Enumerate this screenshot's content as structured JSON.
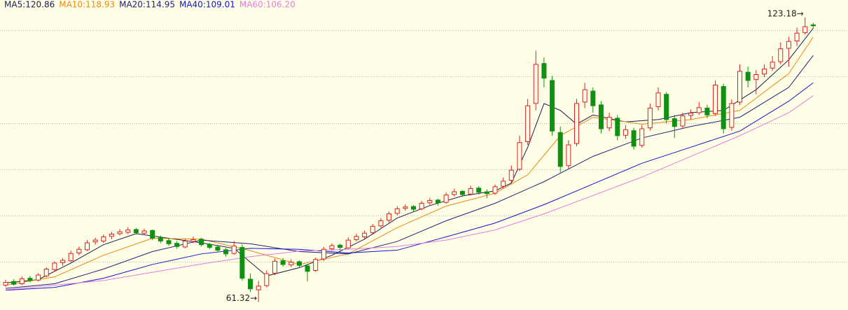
{
  "chart_data": {
    "type": "candlestick",
    "ylim": [
      59.6,
      127
    ],
    "up_color": "#e02020",
    "down_color": "#109010",
    "ohlc": [
      [
        65.0,
        66.2,
        64.6,
        65.6
      ],
      [
        65.8,
        66.3,
        64.9,
        65.2
      ],
      [
        65.3,
        66.9,
        65.0,
        66.4
      ],
      [
        66.5,
        67.0,
        65.6,
        66.0
      ],
      [
        66.1,
        67.6,
        65.8,
        67.2
      ],
      [
        67.0,
        68.9,
        66.7,
        68.5
      ],
      [
        68.4,
        70.2,
        68.0,
        69.8
      ],
      [
        69.9,
        70.9,
        69.2,
        70.4
      ],
      [
        70.3,
        72.5,
        70.0,
        71.9
      ],
      [
        72.0,
        73.4,
        71.5,
        72.8
      ],
      [
        72.7,
        74.8,
        72.4,
        74.2
      ],
      [
        74.4,
        75.3,
        73.8,
        74.8
      ],
      [
        74.6,
        76.0,
        74.2,
        75.5
      ],
      [
        75.6,
        76.6,
        75.0,
        76.1
      ],
      [
        76.2,
        77.2,
        75.8,
        76.6
      ],
      [
        76.5,
        77.6,
        76.1,
        77.0
      ],
      [
        77.1,
        77.4,
        76.0,
        76.4
      ],
      [
        76.3,
        77.3,
        75.9,
        76.8
      ],
      [
        76.9,
        77.1,
        74.8,
        75.2
      ],
      [
        75.3,
        75.8,
        74.1,
        74.6
      ],
      [
        74.7,
        75.2,
        73.6,
        74.0
      ],
      [
        74.1,
        74.6,
        72.9,
        73.4
      ],
      [
        73.3,
        75.1,
        73.0,
        74.6
      ],
      [
        74.5,
        75.6,
        74.1,
        74.9
      ],
      [
        75.0,
        75.3,
        73.4,
        73.8
      ],
      [
        73.9,
        74.2,
        72.8,
        73.2
      ],
      [
        73.3,
        73.8,
        72.1,
        72.6
      ],
      [
        72.7,
        73.1,
        71.2,
        71.8
      ],
      [
        71.9,
        74.6,
        71.6,
        73.5
      ],
      [
        73.2,
        73.9,
        66.0,
        66.5
      ],
      [
        66.3,
        67.5,
        63.5,
        64.2
      ],
      [
        64.0,
        65.9,
        61.32,
        64.8
      ],
      [
        64.9,
        68.2,
        64.5,
        67.5
      ],
      [
        67.6,
        70.8,
        67.2,
        70.2
      ],
      [
        70.3,
        70.9,
        69.0,
        69.5
      ],
      [
        69.4,
        70.6,
        68.9,
        70.0
      ],
      [
        70.1,
        70.4,
        68.7,
        69.3
      ],
      [
        69.2,
        69.6,
        65.8,
        68.0
      ],
      [
        68.2,
        71.0,
        67.9,
        70.6
      ],
      [
        70.7,
        73.3,
        70.3,
        72.8
      ],
      [
        72.9,
        74.1,
        72.5,
        73.6
      ],
      [
        73.7,
        74.0,
        72.6,
        73.2
      ],
      [
        73.1,
        75.4,
        72.9,
        74.8
      ],
      [
        74.9,
        76.2,
        74.5,
        75.6
      ],
      [
        75.5,
        76.9,
        75.1,
        76.3
      ],
      [
        76.4,
        78.3,
        76.0,
        77.8
      ],
      [
        77.9,
        79.6,
        77.5,
        79.0
      ],
      [
        79.1,
        81.0,
        78.6,
        80.5
      ],
      [
        80.6,
        82.2,
        80.2,
        81.6
      ],
      [
        81.7,
        82.6,
        81.2,
        82.0
      ],
      [
        82.1,
        82.4,
        81.0,
        81.5
      ],
      [
        81.6,
        83.3,
        81.3,
        82.8
      ],
      [
        82.9,
        84.0,
        82.5,
        83.4
      ],
      [
        83.5,
        83.8,
        82.3,
        82.9
      ],
      [
        83.0,
        85.2,
        82.7,
        84.6
      ],
      [
        84.7,
        86.0,
        84.3,
        85.3
      ],
      [
        85.4,
        85.7,
        84.2,
        84.7
      ],
      [
        84.8,
        86.6,
        84.5,
        86.0
      ],
      [
        86.1,
        86.5,
        84.7,
        85.2
      ],
      [
        85.3,
        85.8,
        83.9,
        84.9
      ],
      [
        85.0,
        86.9,
        84.6,
        86.4
      ],
      [
        86.5,
        88.4,
        86.1,
        87.6
      ],
      [
        87.8,
        91.0,
        87.3,
        90.0
      ],
      [
        90.2,
        97.5,
        89.8,
        96.0
      ],
      [
        96.2,
        105.5,
        95.5,
        104.0
      ],
      [
        104.5,
        116.0,
        103.0,
        113.0
      ],
      [
        113.2,
        114.5,
        108.0,
        110.0
      ],
      [
        109.5,
        110.5,
        97.5,
        98.5
      ],
      [
        98.2,
        99.5,
        89.5,
        90.8
      ],
      [
        91.0,
        96.5,
        90.2,
        95.5
      ],
      [
        95.8,
        105.5,
        95.2,
        104.5
      ],
      [
        104.8,
        109.0,
        103.5,
        107.5
      ],
      [
        107.2,
        108.0,
        102.5,
        104.0
      ],
      [
        104.2,
        105.0,
        98.0,
        99.0
      ],
      [
        99.2,
        102.5,
        98.5,
        101.5
      ],
      [
        101.3,
        102.0,
        96.5,
        97.5
      ],
      [
        97.6,
        99.8,
        96.8,
        98.8
      ],
      [
        98.6,
        99.2,
        94.5,
        95.2
      ],
      [
        95.4,
        99.8,
        94.9,
        99.0
      ],
      [
        99.2,
        104.5,
        98.6,
        103.5
      ],
      [
        103.8,
        108.0,
        103.0,
        106.8
      ],
      [
        106.5,
        107.0,
        100.2,
        101.0
      ],
      [
        101.2,
        102.0,
        97.0,
        99.5
      ],
      [
        99.6,
        102.5,
        99.0,
        101.8
      ],
      [
        101.9,
        103.2,
        101.0,
        102.4
      ],
      [
        102.5,
        104.8,
        102.0,
        103.6
      ],
      [
        103.5,
        104.2,
        101.3,
        102.0
      ],
      [
        102.3,
        109.5,
        101.8,
        108.5
      ],
      [
        108.2,
        108.8,
        98.0,
        99.0
      ],
      [
        99.3,
        105.4,
        98.6,
        104.5
      ],
      [
        104.8,
        113.0,
        104.2,
        111.5
      ],
      [
        111.3,
        112.5,
        108.0,
        109.5
      ],
      [
        109.7,
        111.8,
        106.5,
        110.8
      ],
      [
        110.9,
        113.0,
        110.2,
        112.0
      ],
      [
        112.2,
        114.8,
        111.6,
        113.5
      ],
      [
        113.6,
        117.8,
        113.0,
        116.4
      ],
      [
        116.5,
        119.0,
        112.5,
        118.0
      ],
      [
        118.1,
        121.0,
        117.0,
        119.8
      ],
      [
        119.9,
        123.18,
        119.5,
        121.2
      ],
      [
        121.6,
        122.0,
        120.8,
        121.4
      ]
    ],
    "series": [
      {
        "name": "MA5:120.86",
        "color": "#1c1c50",
        "x": [
          0,
          4,
          8,
          12,
          16,
          20,
          24,
          28,
          30,
          32,
          36,
          40,
          44,
          48,
          52,
          56,
          60,
          62,
          64,
          66,
          68,
          70,
          72,
          76,
          80,
          84,
          88,
          92,
          96,
          99
        ],
        "values": [
          65.5,
          66.2,
          69.8,
          73.8,
          76.2,
          75.2,
          74.2,
          73.0,
          70.0,
          67.0,
          68.8,
          71.5,
          75.0,
          79.6,
          82.3,
          84.4,
          85.5,
          87.2,
          95.0,
          104.5,
          103.0,
          100.0,
          102.0,
          100.5,
          101.0,
          102.5,
          103.0,
          107.5,
          114.0,
          120.86
        ]
      },
      {
        "name": "MA10:118.93",
        "color": "#e88a10",
        "x": [
          0,
          6,
          12,
          18,
          24,
          30,
          36,
          42,
          48,
          54,
          60,
          64,
          68,
          72,
          78,
          84,
          90,
          96,
          99
        ],
        "values": [
          65.0,
          66.8,
          71.5,
          75.2,
          75.0,
          72.5,
          69.5,
          71.8,
          77.5,
          82.2,
          85.0,
          89.0,
          97.5,
          101.5,
          100.0,
          101.0,
          103.0,
          111.0,
          118.93
        ]
      },
      {
        "name": "MA20:114.95",
        "color": "#20207a",
        "x": [
          0,
          6,
          12,
          18,
          24,
          30,
          36,
          42,
          48,
          54,
          60,
          66,
          72,
          78,
          84,
          90,
          96,
          99
        ],
        "values": [
          64.3,
          65.3,
          68.5,
          72.3,
          74.8,
          74.0,
          72.3,
          71.8,
          74.5,
          79.0,
          82.8,
          87.5,
          93.0,
          97.0,
          99.5,
          101.5,
          108.0,
          114.95
        ]
      },
      {
        "name": "MA40:109.01",
        "color": "#1414d0",
        "x": [
          0,
          6,
          12,
          18,
          24,
          30,
          36,
          42,
          48,
          54,
          60,
          66,
          72,
          78,
          84,
          90,
          96,
          99
        ],
        "values": [
          63.9,
          64.5,
          66.5,
          69.5,
          71.8,
          73.0,
          72.8,
          72.0,
          72.6,
          75.5,
          78.5,
          82.5,
          87.0,
          91.5,
          95.0,
          98.5,
          105.0,
          109.01
        ]
      },
      {
        "name": "MA60:106.20",
        "color": "#e47ae4",
        "x": [
          0,
          12,
          18,
          24,
          30,
          36,
          42,
          48,
          54,
          60,
          66,
          72,
          78,
          84,
          90,
          96,
          99
        ],
        "values": [
          64.0,
          66.0,
          67.8,
          69.6,
          71.2,
          72.4,
          72.8,
          73.4,
          74.8,
          77.0,
          80.5,
          84.5,
          88.5,
          93.0,
          97.5,
          102.5,
          106.2
        ]
      }
    ],
    "annotations": [
      {
        "text": "123.18→",
        "x": 98,
        "value": 123.18
      },
      {
        "text": "61.32→",
        "x": 31,
        "value": 61.32
      }
    ]
  }
}
